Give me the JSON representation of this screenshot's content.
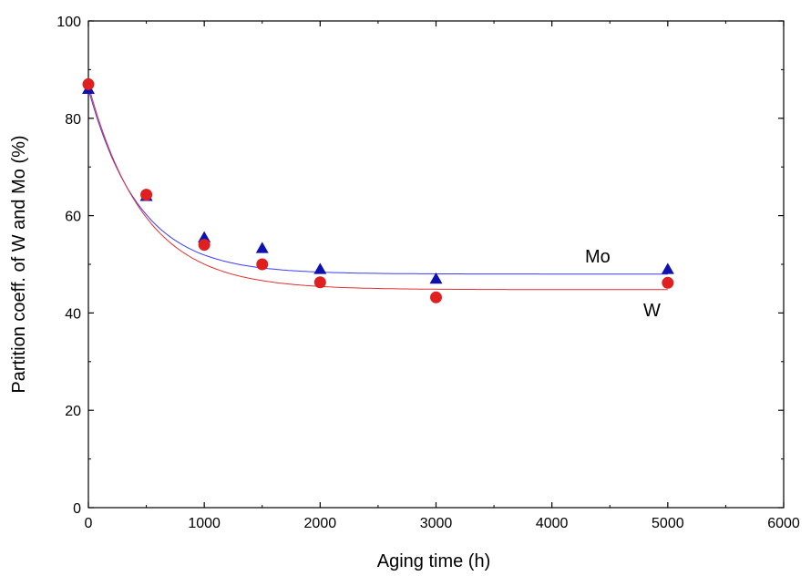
{
  "chart_data": {
    "type": "scatter",
    "title": "",
    "xlabel": "Aging time (h)",
    "ylabel": "Partition coeff. of W and Mo (%)",
    "xlim": [
      0,
      6000
    ],
    "ylim": [
      0,
      100
    ],
    "xticks": [
      0,
      1000,
      2000,
      3000,
      4000,
      5000,
      6000
    ],
    "yticks": [
      0,
      20,
      40,
      60,
      80,
      100
    ],
    "grid": false,
    "legend": "none",
    "series": [
      {
        "name": "Mo",
        "marker": "triangle",
        "color": "#1010b0",
        "line_color": "#3a3aff",
        "points": [
          [
            0,
            86.0
          ],
          [
            500,
            64.0
          ],
          [
            1000,
            55.5
          ],
          [
            1500,
            53.3
          ],
          [
            2000,
            49.0
          ],
          [
            3000,
            47.0
          ],
          [
            5000,
            49.0
          ]
        ],
        "fit": {
          "model": "exponential_decay",
          "y_inf": 48.0,
          "amplitude": 38.0,
          "tau": 440
        }
      },
      {
        "name": "W",
        "marker": "circle",
        "color": "#e02020",
        "line_color": "#e03030",
        "points": [
          [
            0,
            87.0
          ],
          [
            500,
            64.3
          ],
          [
            1000,
            54.0
          ],
          [
            1500,
            50.0
          ],
          [
            2000,
            46.3
          ],
          [
            3000,
            43.2
          ],
          [
            5000,
            46.2
          ]
        ],
        "fit": {
          "model": "exponential_decay",
          "y_inf": 44.8,
          "amplitude": 42.0,
          "tau": 480
        }
      }
    ]
  }
}
